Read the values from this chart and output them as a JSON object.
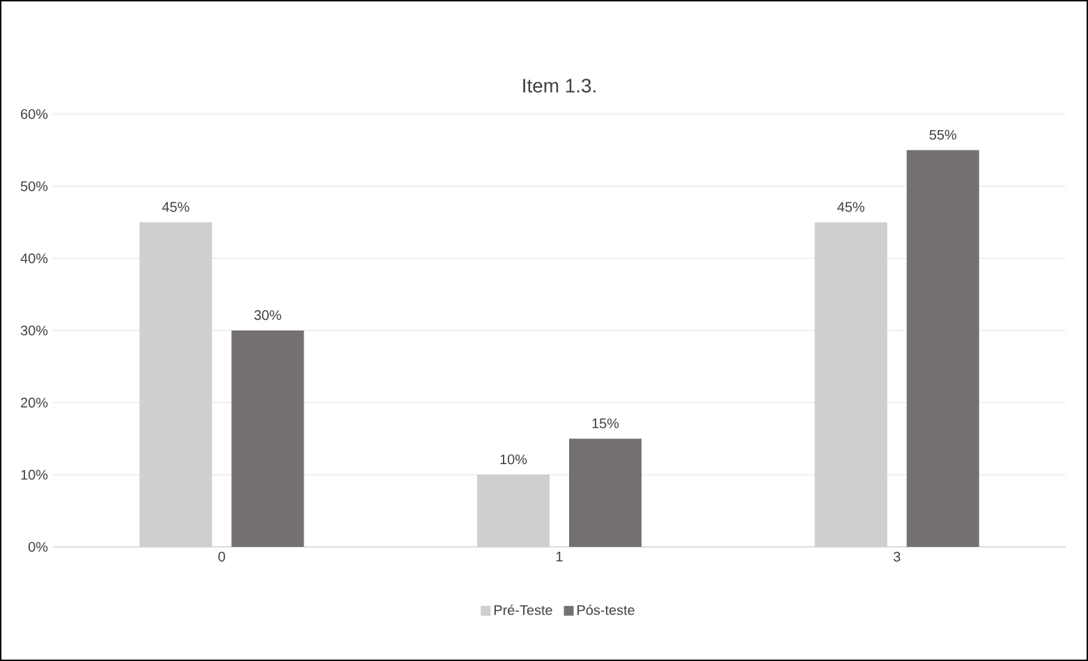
{
  "chart_data": {
    "type": "bar",
    "title": "Item 1.3.",
    "categories": [
      "0",
      "1",
      "3"
    ],
    "series": [
      {
        "name": "Pré-Teste",
        "color": "#d0cece",
        "values": [
          45,
          10,
          45
        ],
        "value_labels": [
          "45%",
          "10%",
          "45%"
        ]
      },
      {
        "name": "Pós-teste",
        "color": "#767171",
        "values": [
          30,
          15,
          55
        ],
        "value_labels": [
          "30%",
          "15%",
          "55%"
        ]
      }
    ],
    "ylim": [
      0,
      60
    ],
    "yticks": [
      {
        "value": 0,
        "label": "0%"
      },
      {
        "value": 10,
        "label": "10%"
      },
      {
        "value": 20,
        "label": "20%"
      },
      {
        "value": 30,
        "label": "30%"
      },
      {
        "value": 40,
        "label": "40%"
      },
      {
        "value": 50,
        "label": "50%"
      },
      {
        "value": 60,
        "label": "60%"
      }
    ],
    "grid": "y",
    "legend": "bottom"
  }
}
